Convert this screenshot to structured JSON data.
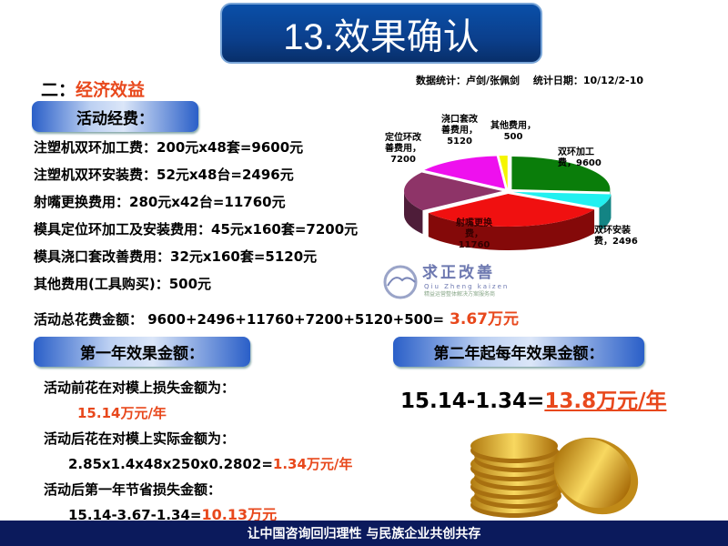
{
  "title": "13.效果确认",
  "section": {
    "prefix": "二：",
    "name": "经济效益"
  },
  "stats_line": "数据统计：卢剑/张佩剑　 统计日期：10/12/2-10",
  "costs": {
    "heading": "活动经费：",
    "items": [
      "注塑机双环加工费：200元x48套=9600元",
      "注塑机双环安装费：52元x48台=2496元",
      "射嘴更换费用：280元x42台=11760元",
      "模具定位环加工及安装费用：45元x160套=7200元",
      "模具浇口套改善费用：32元x160套=5120元",
      "其他费用(工具购买)：500元"
    ],
    "total_label": "活动总花费金额：  9600+2496+11760+7200+5120+500=",
    "total_value": " 3.67万元"
  },
  "first_year": {
    "heading": "第一年效果金额：",
    "before_label": "活动前花在对模上损失金额为：",
    "before_value": "15.14万元/年",
    "after_label": "活动后花在对模上实际金额为：",
    "after_formula": "2.85x1.4x48x250x0.2802=",
    "after_value": "1.34万元/年",
    "saving_label": "活动后第一年节省损失金额：",
    "saving_formula": "15.14-3.67-1.34=",
    "saving_value": "10.13万元"
  },
  "subsequent": {
    "heading": "第二年起每年效果金额：",
    "formula": "15.14-1.34=",
    "value": "13.8万元/年"
  },
  "logo": {
    "name": "求正改善",
    "pinyin": "Qiu Zheng kaizen",
    "tagline": "精益运营整体解决方案服务商"
  },
  "footer": "让中国咨询回归理性 与民族企业共创共存",
  "chart_data": {
    "type": "pie",
    "style": "3d-exploded",
    "slices": [
      {
        "label": "双环加工费，9600",
        "name": "双环加工费",
        "value": 9600,
        "color": "#0a7d0a"
      },
      {
        "label": "双环安装费，2496",
        "name": "双环安装费",
        "value": 2496,
        "color": "#22f0f0"
      },
      {
        "label": "射嘴更换费，11760",
        "name": "射嘴更换费",
        "value": 11760,
        "color": "#f01010"
      },
      {
        "label": "定位环改善费用，7200",
        "name": "定位环改善费用",
        "value": 7200,
        "color": "#8e3468"
      },
      {
        "label": "浇口套改善费用，5120",
        "name": "浇口套改善费用",
        "value": 5120,
        "color": "#ee10ee"
      },
      {
        "label": "其他费用，500",
        "name": "其他费用",
        "value": 500,
        "color": "#f5f500"
      }
    ]
  }
}
